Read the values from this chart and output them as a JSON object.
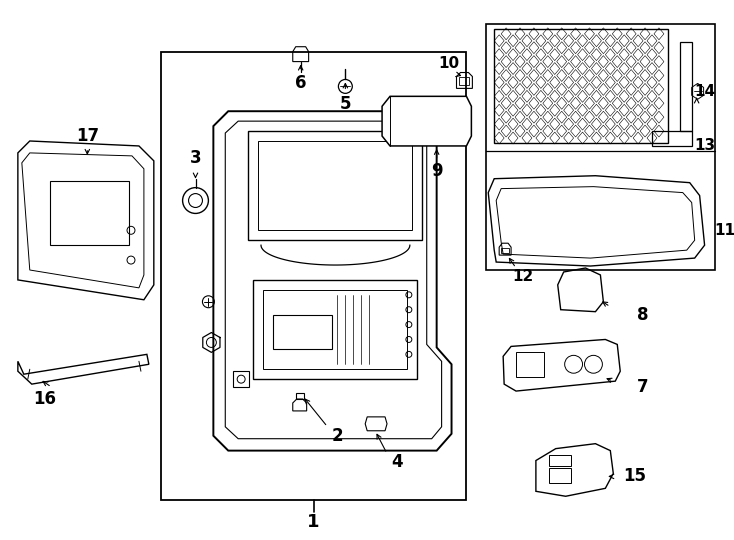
{
  "background": "#ffffff",
  "line_color": "#000000",
  "fig_width": 7.34,
  "fig_height": 5.4,
  "dpi": 100
}
